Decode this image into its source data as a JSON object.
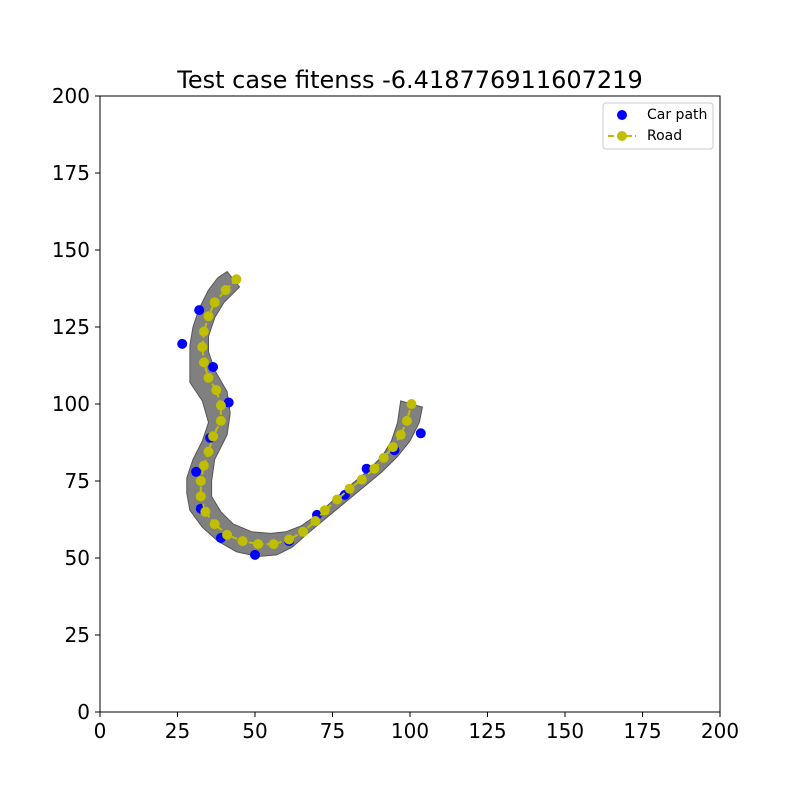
{
  "chart_data": {
    "type": "scatter",
    "title": "Test case fitenss -6.418776911607219",
    "xlabel": "",
    "ylabel": "",
    "xlim": [
      0,
      200
    ],
    "ylim": [
      0,
      200
    ],
    "xticks": [
      "0",
      "25",
      "50",
      "75",
      "100",
      "125",
      "150",
      "175",
      "200"
    ],
    "yticks": [
      "0",
      "25",
      "50",
      "75",
      "100",
      "125",
      "150",
      "175",
      "200"
    ],
    "grid": false,
    "legend_position": "top-right",
    "road_band": {
      "color": "#808080",
      "outline": [
        [
          41,
          143
        ],
        [
          45,
          138
        ],
        [
          40,
          133
        ],
        [
          37,
          128
        ],
        [
          35,
          122
        ],
        [
          35,
          117
        ],
        [
          37,
          111
        ],
        [
          41,
          104
        ],
        [
          42,
          97
        ],
        [
          41,
          90
        ],
        [
          37,
          82
        ],
        [
          36,
          75
        ],
        [
          36,
          70
        ],
        [
          39,
          65
        ],
        [
          43,
          61
        ],
        [
          49,
          58.5
        ],
        [
          55,
          58
        ],
        [
          60,
          58.5
        ],
        [
          65,
          60.5
        ],
        [
          70,
          64
        ],
        [
          75,
          68.5
        ],
        [
          80,
          73
        ],
        [
          86,
          78
        ],
        [
          91,
          83
        ],
        [
          94,
          88
        ],
        [
          96,
          94
        ],
        [
          97,
          101
        ],
        [
          104,
          99
        ],
        [
          103,
          94
        ],
        [
          100,
          88
        ],
        [
          96,
          83
        ],
        [
          91,
          78
        ],
        [
          85,
          73
        ],
        [
          79,
          68
        ],
        [
          73,
          63
        ],
        [
          67,
          58
        ],
        [
          62,
          53.5
        ],
        [
          57,
          51
        ],
        [
          51,
          50.5
        ],
        [
          44,
          52
        ],
        [
          38,
          55.5
        ],
        [
          33,
          60
        ],
        [
          29,
          65.5
        ],
        [
          28,
          71
        ],
        [
          28,
          76
        ],
        [
          30,
          82
        ],
        [
          33,
          88
        ],
        [
          35,
          94
        ],
        [
          33,
          101
        ],
        [
          29,
          107
        ],
        [
          29,
          113
        ],
        [
          29,
          119
        ],
        [
          30,
          125
        ],
        [
          32,
          131
        ],
        [
          35,
          137
        ],
        [
          38,
          141
        ]
      ]
    },
    "series": [
      {
        "name": "Car path",
        "color": "#0000ff",
        "marker": "circle",
        "line": false,
        "points": [
          [
            26.5,
            119.5
          ],
          [
            32,
            130.5
          ],
          [
            36.5,
            112
          ],
          [
            41.5,
            100.5
          ],
          [
            35.5,
            89
          ],
          [
            31,
            78
          ],
          [
            32.5,
            66
          ],
          [
            39,
            56.5
          ],
          [
            50,
            51
          ],
          [
            61,
            55.5
          ],
          [
            70,
            64
          ],
          [
            79,
            70.5
          ],
          [
            86,
            79
          ],
          [
            95,
            85
          ],
          [
            103.5,
            90.5
          ]
        ]
      },
      {
        "name": "Road",
        "color": "#bfbf00",
        "marker": "circle",
        "line": "dashed",
        "points": [
          [
            44,
            140.5
          ],
          [
            40.5,
            137
          ],
          [
            37,
            133
          ],
          [
            35,
            128.5
          ],
          [
            33.5,
            123.5
          ],
          [
            33,
            118.5
          ],
          [
            33.5,
            113.5
          ],
          [
            35,
            108.5
          ],
          [
            37.5,
            104.5
          ],
          [
            39,
            99.5
          ],
          [
            39,
            94.5
          ],
          [
            36.5,
            89.5
          ],
          [
            35,
            84.5
          ],
          [
            33.5,
            80
          ],
          [
            32.5,
            75
          ],
          [
            32.5,
            70
          ],
          [
            34,
            65
          ],
          [
            37,
            61
          ],
          [
            41,
            57.5
          ],
          [
            46,
            55.5
          ],
          [
            51,
            54.5
          ],
          [
            56,
            54.5
          ],
          [
            61,
            56
          ],
          [
            65.5,
            58.5
          ],
          [
            69.5,
            62
          ],
          [
            72.5,
            65.5
          ],
          [
            76.5,
            69
          ],
          [
            80.5,
            72.5
          ],
          [
            84.5,
            75.5
          ],
          [
            88.5,
            79
          ],
          [
            91.5,
            82.5
          ],
          [
            94.5,
            86
          ],
          [
            97,
            90
          ],
          [
            99,
            94.5
          ],
          [
            100.5,
            100
          ]
        ]
      }
    ]
  }
}
